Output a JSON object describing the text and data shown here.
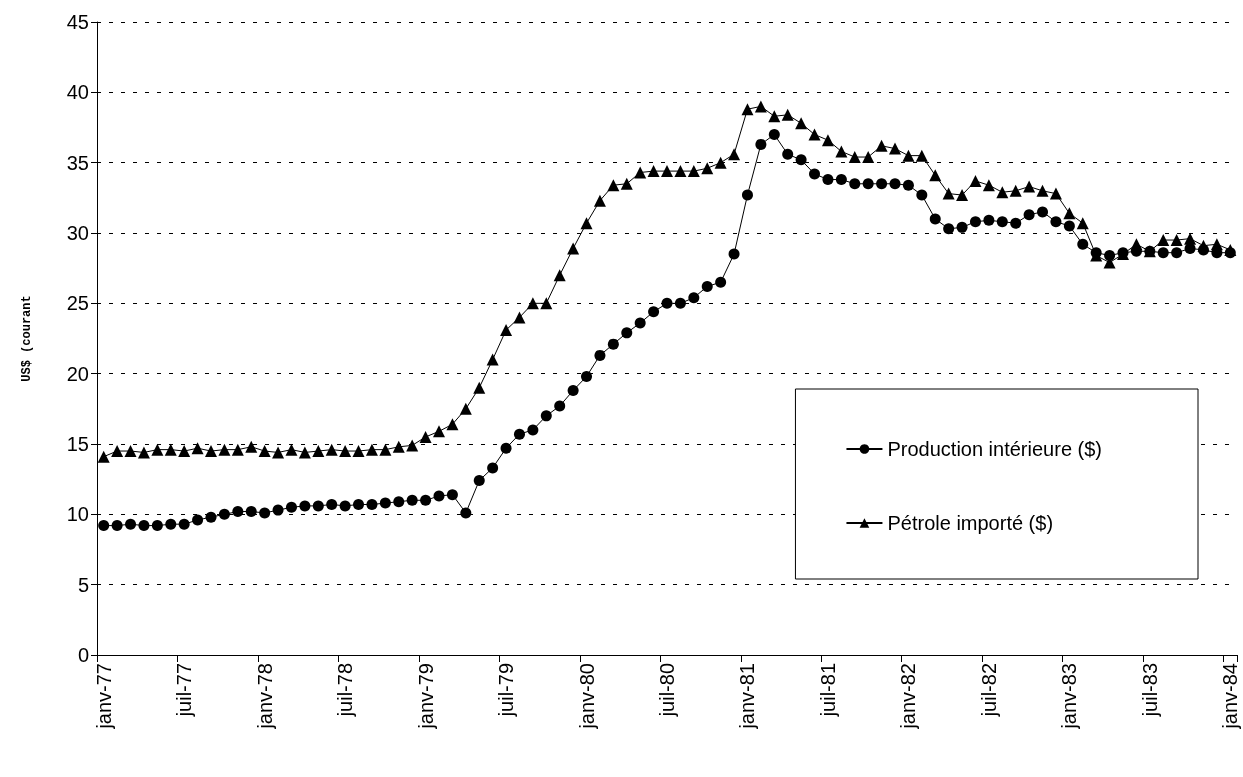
{
  "chart_data": {
    "type": "line",
    "ylabel": "US$ (courant",
    "categories": [
      "janv-77",
      null,
      null,
      null,
      null,
      null,
      "juil-77",
      null,
      null,
      null,
      null,
      null,
      "janv-78",
      null,
      null,
      null,
      null,
      null,
      "juil-78",
      null,
      null,
      null,
      null,
      null,
      "janv-79",
      null,
      null,
      null,
      null,
      null,
      "juil-79",
      null,
      null,
      null,
      null,
      null,
      "janv-80",
      null,
      null,
      null,
      null,
      null,
      "juil-80",
      null,
      null,
      null,
      null,
      null,
      "janv-81",
      null,
      null,
      null,
      null,
      null,
      "juil-81",
      null,
      null,
      null,
      null,
      null,
      "janv-82",
      null,
      null,
      null,
      null,
      null,
      "juil-82",
      null,
      null,
      null,
      null,
      null,
      "janv-83",
      null,
      null,
      null,
      null,
      null,
      "juil-83",
      null,
      null,
      null,
      null,
      null,
      "janv-84"
    ],
    "series": [
      {
        "name": "Production intérieure ($)",
        "color": "#000000",
        "marker": "circle",
        "values": [
          9.2,
          9.2,
          9.3,
          9.2,
          9.2,
          9.3,
          9.3,
          9.6,
          9.8,
          10.0,
          10.2,
          10.2,
          10.1,
          10.3,
          10.5,
          10.6,
          10.6,
          10.7,
          10.6,
          10.7,
          10.7,
          10.8,
          10.9,
          11.0,
          11.0,
          11.3,
          11.4,
          10.1,
          12.4,
          13.3,
          14.7,
          15.7,
          16.0,
          17.0,
          17.7,
          18.8,
          19.8,
          21.3,
          22.1,
          22.9,
          23.6,
          24.4,
          25.0,
          25.0,
          25.4,
          26.2,
          26.5,
          28.5,
          32.7,
          36.3,
          37.0,
          35.6,
          35.2,
          34.2,
          33.8,
          33.8,
          33.5,
          33.5,
          33.5,
          33.5,
          33.4,
          32.7,
          31.0,
          30.3,
          30.4,
          30.8,
          30.9,
          30.8,
          30.7,
          31.3,
          31.5,
          30.8,
          30.5,
          29.2,
          28.6,
          28.4,
          28.6,
          28.7,
          28.7,
          28.6,
          28.6,
          28.9,
          28.8,
          28.6,
          28.6
        ]
      },
      {
        "name": "Pétrole importé ($)",
        "color": "#000000",
        "marker": "triangle",
        "values": [
          14.1,
          14.5,
          14.5,
          14.4,
          14.6,
          14.6,
          14.5,
          14.7,
          14.5,
          14.6,
          14.6,
          14.8,
          14.5,
          14.4,
          14.6,
          14.4,
          14.5,
          14.6,
          14.5,
          14.5,
          14.6,
          14.6,
          14.8,
          14.9,
          15.5,
          15.9,
          16.4,
          17.5,
          19.0,
          21.0,
          23.1,
          24.0,
          25.0,
          25.0,
          27.0,
          28.9,
          30.7,
          32.3,
          33.4,
          33.5,
          34.3,
          34.4,
          34.4,
          34.4,
          34.4,
          34.6,
          35.0,
          35.6,
          38.8,
          39.0,
          38.3,
          38.4,
          37.8,
          37.0,
          36.6,
          35.8,
          35.4,
          35.4,
          36.2,
          36.0,
          35.5,
          35.5,
          34.1,
          32.8,
          32.7,
          33.7,
          33.4,
          32.9,
          33.0,
          33.3,
          33.0,
          32.8,
          31.4,
          30.7,
          28.4,
          27.9,
          28.5,
          29.2,
          28.7,
          29.5,
          29.5,
          29.6,
          29.1,
          29.2,
          28.8
        ]
      }
    ],
    "ylim": [
      0,
      45
    ],
    "yticks": [
      0,
      5,
      10,
      15,
      20,
      25,
      30,
      35,
      40,
      45
    ],
    "grid": "y",
    "line_style": "solid",
    "legend": "bottom right"
  }
}
